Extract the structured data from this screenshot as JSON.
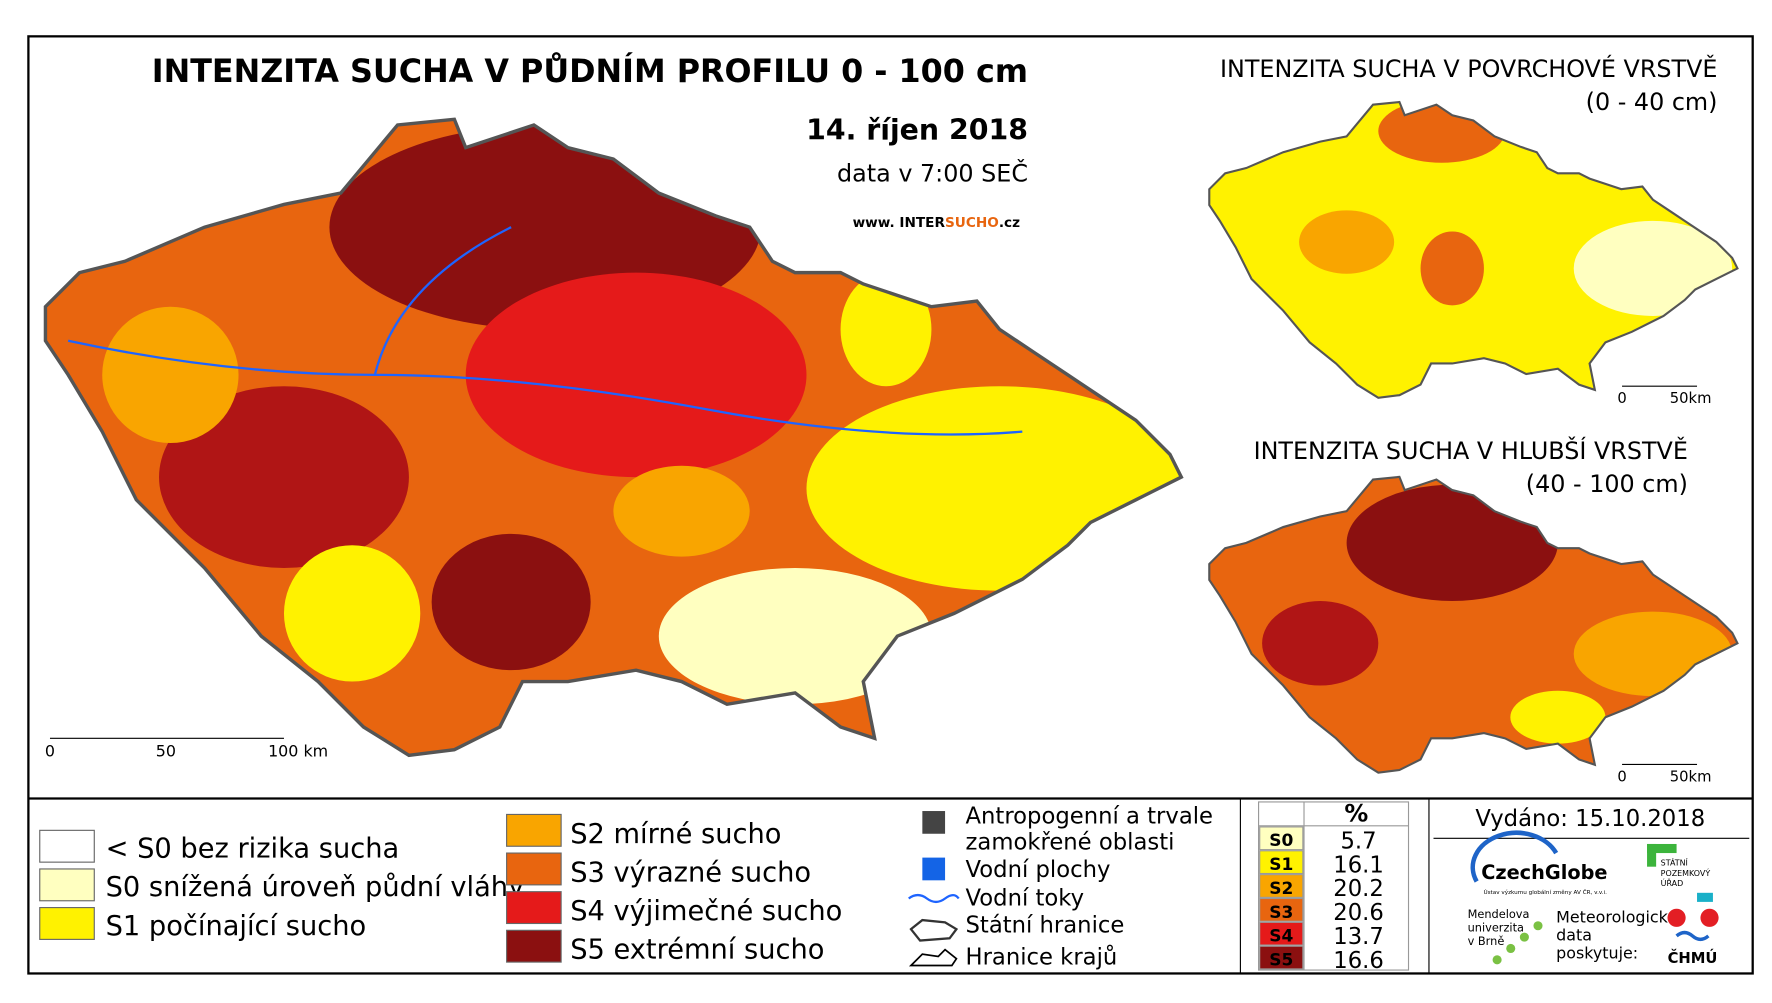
{
  "main_map": {
    "title": "INTENZITA SUCHA V PŮDNÍM PROFILU 0 - 100 cm",
    "date": "14. říjen 2018",
    "time": "data v 7:00 SEČ",
    "website": [
      "www. INTER",
      "SUCHO",
      ".cz"
    ],
    "scale": [
      "0",
      "50",
      "100 km"
    ]
  },
  "surface_map": {
    "title": "INTENZITA SUCHA V POVRCHOVÉ VRSTVĚ",
    "subtitle": "(0 - 40 cm)",
    "scale": [
      "0",
      "50km"
    ]
  },
  "deep_map": {
    "title": "INTENZITA SUCHA V HLUBŠÍ VRSTVĚ",
    "subtitle": "(40 - 100 cm)",
    "scale": [
      "0",
      "50km"
    ]
  },
  "legend": {
    "classes": [
      "< S0 bez rizika sucha",
      "S0 snížená úroveň půdní vláhy",
      "S1 počínající sucho",
      "S2 mírné sucho",
      "S3 výrazné sucho",
      "S4 výjimečné sucho",
      "S5 extrémní sucho"
    ],
    "other": [
      [
        "Antropogenní a trvale",
        "zamokřené oblasti"
      ],
      [
        "Vodní plochy"
      ],
      [
        "Vodní toky"
      ],
      [
        "Státní hranice"
      ],
      [
        "Hranice krajů"
      ]
    ]
  },
  "stats_table": {
    "header": "%",
    "rows": [
      [
        "S0",
        5.7
      ],
      [
        "S1",
        16.1
      ],
      [
        "S2",
        20.2
      ],
      [
        "S3",
        20.6
      ],
      [
        "S4",
        13.7
      ],
      [
        "S5",
        16.6
      ]
    ]
  },
  "issued": "Vydáno: 15.10.2018",
  "logos": {
    "czechglobe": "CzechGlobe",
    "czechglobe_sub": "Ústav výzkumu globální změny AV ČR, v.v.i.",
    "spu": [
      "STÁTNÍ",
      "POZEMKOVÝ",
      "ÚŘAD"
    ],
    "mendelu": [
      "Mendelova",
      "univerzita",
      "v Brně"
    ],
    "chmu_note": [
      "Meteorologická",
      "data",
      "poskytuje:"
    ],
    "chmu": "ČHMÚ"
  }
}
